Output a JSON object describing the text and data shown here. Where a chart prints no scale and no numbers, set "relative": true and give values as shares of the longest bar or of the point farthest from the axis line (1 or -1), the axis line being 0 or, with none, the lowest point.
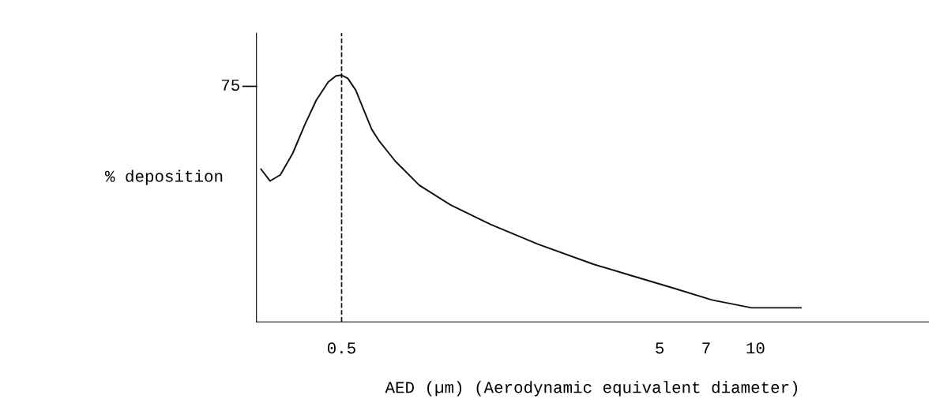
{
  "chart_data": {
    "type": "line",
    "xlabel": "AED (µm) (Aerodynamic equivalent diameter)",
    "ylabel": "% deposition",
    "x": [
      0.279,
      0.298,
      0.321,
      0.351,
      0.382,
      0.416,
      0.454,
      0.48,
      0.5,
      0.523,
      0.554,
      0.587,
      0.622,
      0.658,
      0.738,
      0.877,
      1.1,
      1.47,
      2.07,
      3.09,
      4.11,
      5.48,
      7.29,
      9.72,
      13.9
    ],
    "series": [
      {
        "color": "#111111",
        "values": [
          0.619,
          0.571,
          0.596,
          0.683,
          0.795,
          0.898,
          0.972,
          0.997,
          1,
          0.987,
          0.939,
          0.859,
          0.78,
          0.731,
          0.651,
          0.554,
          0.474,
          0.395,
          0.315,
          0.234,
          0.186,
          0.138,
          0.089,
          0.057,
          0.057
        ]
      }
    ],
    "relative": true,
    "annotations": [
      "75"
    ],
    "log": "x",
    "xlim": [
      0.27,
      35
    ],
    "xticks": [
      0.5,
      5,
      7,
      10
    ],
    "ref_lines": [
      {
        "axis": "x",
        "value": 0.5,
        "color": "#111111",
        "line_style": "dashed"
      }
    ],
    "grid": false,
    "legend": false,
    "marker": "none",
    "line_style": "solid"
  }
}
